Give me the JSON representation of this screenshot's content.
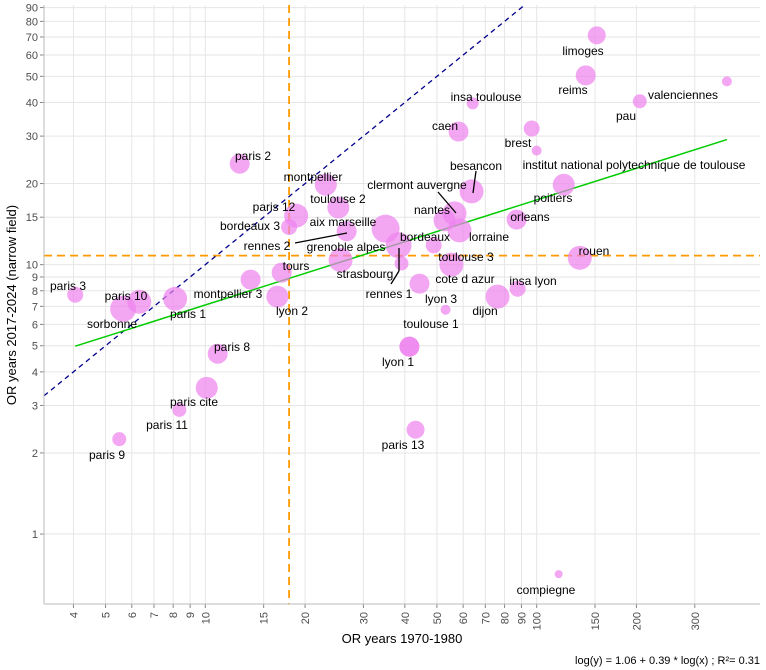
{
  "chart_data": {
    "type": "scatter",
    "xlabel": "OR years 1970-1980",
    "ylabel": "OR years 2017-2024 (narrow field)",
    "caption": "log(y) = 1.06 + 0.39 * log(x) ; R²= 0.31",
    "xscale": "log",
    "yscale": "log",
    "xlim": [
      3.26,
      472
    ],
    "ylim": [
      0.55,
      92
    ],
    "grid": true,
    "xticks": [
      4,
      5,
      6,
      7,
      8,
      9,
      10,
      15,
      20,
      30,
      40,
      50,
      60,
      70,
      80,
      90,
      100,
      150,
      200,
      300
    ],
    "yticks": [
      1,
      2,
      3,
      4,
      5,
      6,
      7,
      8,
      9,
      10,
      15,
      20,
      30,
      40,
      50,
      60,
      70,
      80,
      90
    ],
    "point_color": "#ee82ee",
    "reference_lines": {
      "vertical_x": 17.9,
      "horizontal_y": 10.8,
      "threshold_color": "#ff9900",
      "identity_color": "#00008b",
      "fit_color": "#00cc00",
      "fit": {
        "intercept": 1.06,
        "slope": 0.39,
        "x_range": [
          4.05,
          375
        ]
      }
    },
    "points": [
      {
        "label": "paris 3",
        "x": 4.05,
        "y": 7.73,
        "size": 8
      },
      {
        "label": "paris 10",
        "x": 6.32,
        "y": 7.28,
        "size": 12
      },
      {
        "label": "sorbonne",
        "x": 5.65,
        "y": 6.86,
        "size": 13
      },
      {
        "label": "paris 1",
        "x": 8.11,
        "y": 7.47,
        "size": 12
      },
      {
        "label": "montpellier 3",
        "x": 13.7,
        "y": 8.8,
        "size": 10
      },
      {
        "label": "paris 2",
        "x": 12.7,
        "y": 23.7,
        "size": 10
      },
      {
        "label": "tours",
        "x": 17.0,
        "y": 9.34,
        "size": 10
      },
      {
        "label": "lyon 2",
        "x": 16.5,
        "y": 7.61,
        "size": 11
      },
      {
        "label": "bordeaux 3",
        "x": 17.9,
        "y": 13.8,
        "size": 8
      },
      {
        "label": "paris 12",
        "x": 18.8,
        "y": 15.2,
        "size": 12
      },
      {
        "label": "montpellier",
        "x": 23.1,
        "y": 19.8,
        "size": 11
      },
      {
        "label": "toulouse 2",
        "x": 25.2,
        "y": 16.3,
        "size": 11
      },
      {
        "label": "aix marseille",
        "x": 35.0,
        "y": 13.6,
        "size": 14
      },
      {
        "label": "rennes 2",
        "x": 26.7,
        "y": 13.3,
        "size": 10
      },
      {
        "label": "grenoble alpes",
        "x": 25.6,
        "y": 10.4,
        "size": 12
      },
      {
        "label": "strasbourg",
        "x": 39.1,
        "y": 10.1,
        "size": 7
      },
      {
        "label": "rennes 1",
        "x": 38.3,
        "y": 11.8,
        "size": 13
      },
      {
        "label": "bordeaux",
        "x": 48.9,
        "y": 11.8,
        "size": 8
      },
      {
        "label": "toulouse 3",
        "x": 55.3,
        "y": 10.0,
        "size": 12
      },
      {
        "label": "cote d azur",
        "x": 44.3,
        "y": 8.5,
        "size": 10
      },
      {
        "label": "lyon 3",
        "x": 53.1,
        "y": 6.8,
        "size": 5
      },
      {
        "label": "toulouse 1",
        "x": 41.3,
        "y": 4.96,
        "size": 10
      },
      {
        "label": "dijon",
        "x": 76.2,
        "y": 7.61,
        "size": 12
      },
      {
        "label": "insa lyon",
        "x": 87.6,
        "y": 8.14,
        "size": 8
      },
      {
        "label": "rouen",
        "x": 134.9,
        "y": 10.6,
        "size": 12
      },
      {
        "label": "lorraine",
        "x": 58.5,
        "y": 13.4,
        "size": 12
      },
      {
        "label": "nantes",
        "x": 52.7,
        "y": 14.6,
        "size": 11
      },
      {
        "label": "clermont auvergne",
        "x": 56.5,
        "y": 15.5,
        "size": 12
      },
      {
        "label": "besancon",
        "x": 63.6,
        "y": 18.7,
        "size": 12
      },
      {
        "label": "orleans",
        "x": 87.0,
        "y": 14.7,
        "size": 10
      },
      {
        "label": "poitiers",
        "x": 120.7,
        "y": 19.8,
        "size": 11
      },
      {
        "label": "institut national polytechnique de toulouse",
        "x": 100,
        "y": 26.5,
        "size": 5
      },
      {
        "label": "brest",
        "x": 96.6,
        "y": 32.0,
        "size": 8
      },
      {
        "label": "caen",
        "x": 58.1,
        "y": 31.2,
        "size": 10
      },
      {
        "label": "insa toulouse",
        "x": 64.1,
        "y": 39.7,
        "size": 6
      },
      {
        "label": "limoges",
        "x": 151.8,
        "y": 71.0,
        "size": 9
      },
      {
        "label": "reims",
        "x": 140.6,
        "y": 50.4,
        "size": 10
      },
      {
        "label": "pau",
        "x": 204.7,
        "y": 40.4,
        "size": 7
      },
      {
        "label": "valenciennes",
        "x": 375,
        "y": 47.9,
        "size": 5
      },
      {
        "label": "compiegne",
        "x": 116.5,
        "y": 0.71,
        "size": 4
      },
      {
        "label": "paris 13",
        "x": 43.1,
        "y": 2.44,
        "size": 9
      },
      {
        "label": "lyon 1",
        "x": 41.3,
        "y": 4.96,
        "size": 10
      },
      {
        "label": "paris 8",
        "x": 10.9,
        "y": 4.67,
        "size": 10
      },
      {
        "label": "paris cite",
        "x": 10.1,
        "y": 3.49,
        "size": 11
      },
      {
        "label": "paris 11",
        "x": 8.35,
        "y": 2.89,
        "size": 7
      },
      {
        "label": "paris 9",
        "x": 5.5,
        "y": 2.25,
        "size": 7
      }
    ]
  }
}
